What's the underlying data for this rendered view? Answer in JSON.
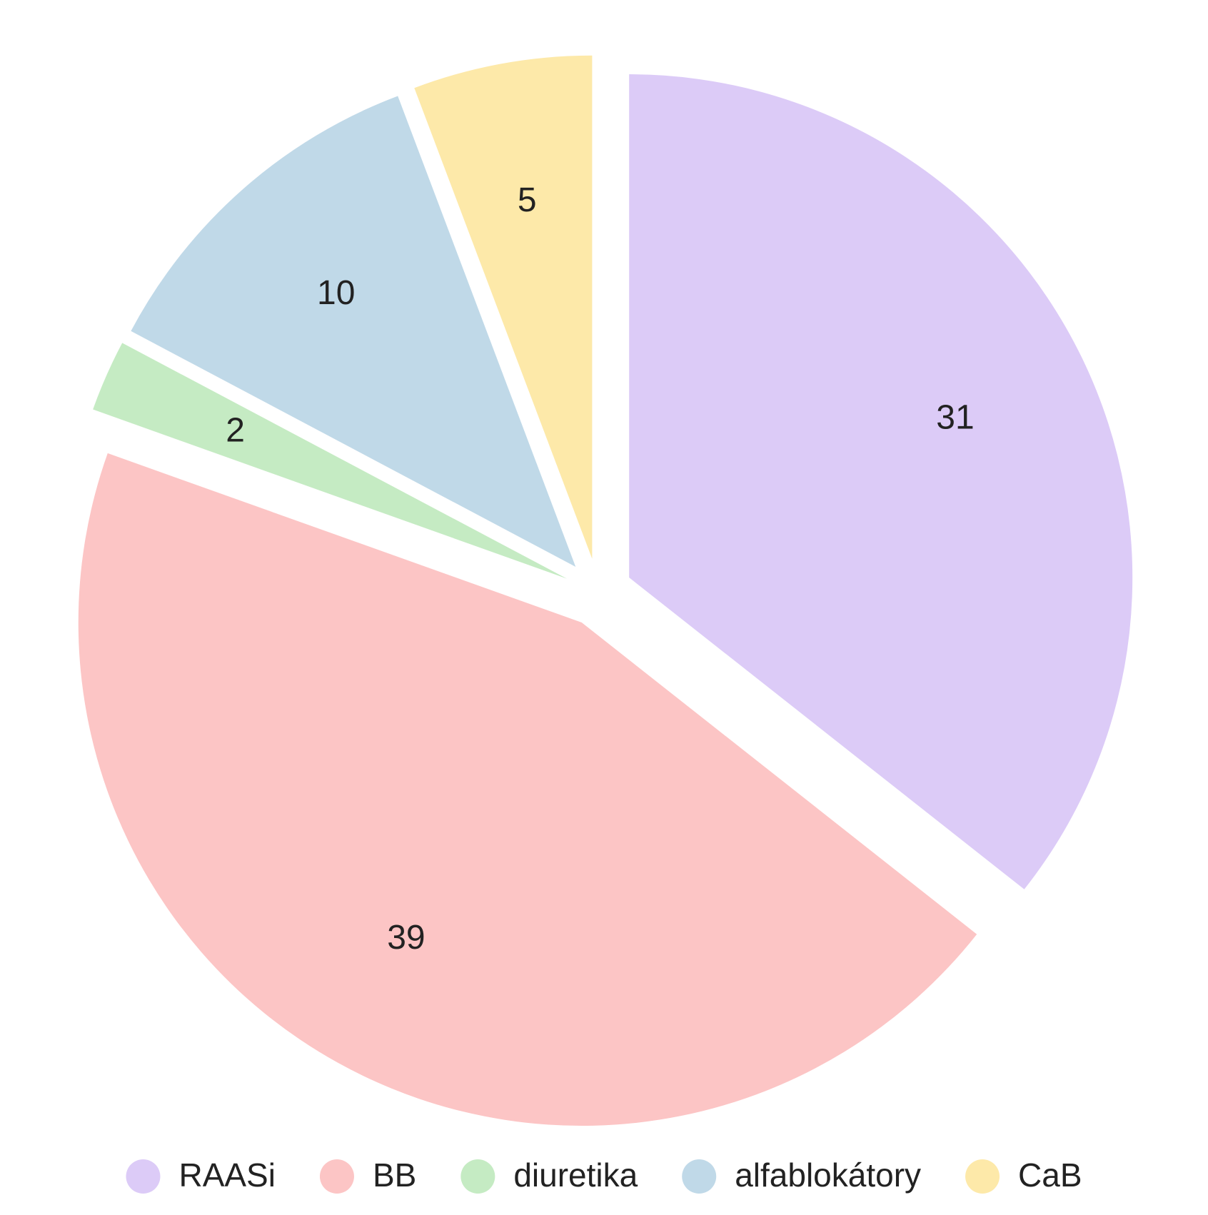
{
  "chart_data": {
    "type": "pie",
    "categories": [
      "RAASi",
      "BB",
      "diuretika",
      "alfablokátory",
      "CaB"
    ],
    "values": [
      31,
      39,
      2,
      10,
      5
    ],
    "colors": [
      "#dccbf7",
      "#fcc5c5",
      "#c5ebc3",
      "#c0d9e8",
      "#fde9a9"
    ],
    "legend": "bottom"
  }
}
